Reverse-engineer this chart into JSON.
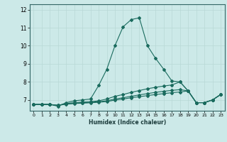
{
  "title": "",
  "xlabel": "Humidex (Indice chaleur)",
  "ylabel": "",
  "background_color": "#cce9e8",
  "grid_color": "#b8d8d6",
  "line_color": "#1a6b5e",
  "xlim": [
    -0.5,
    23.5
  ],
  "ylim": [
    6.4,
    12.3
  ],
  "yticks": [
    7,
    8,
    9,
    10,
    11,
    12
  ],
  "xticks": [
    0,
    1,
    2,
    3,
    4,
    5,
    6,
    7,
    8,
    9,
    10,
    11,
    12,
    13,
    14,
    15,
    16,
    17,
    18,
    19,
    20,
    21,
    22,
    23
  ],
  "series": [
    [
      6.75,
      6.75,
      6.75,
      6.65,
      6.85,
      6.95,
      7.0,
      7.05,
      7.8,
      8.7,
      10.0,
      11.05,
      11.45,
      11.55,
      10.0,
      9.3,
      8.7,
      8.05,
      8.0,
      7.5,
      6.85,
      6.85,
      7.0,
      7.3
    ],
    [
      6.75,
      6.75,
      6.75,
      6.7,
      6.8,
      6.85,
      6.88,
      6.9,
      6.95,
      7.05,
      7.2,
      7.3,
      7.42,
      7.52,
      7.62,
      7.7,
      7.77,
      7.83,
      8.0,
      7.5,
      6.85,
      6.85,
      7.0,
      7.3
    ],
    [
      6.75,
      6.75,
      6.75,
      6.7,
      6.78,
      6.82,
      6.85,
      6.87,
      6.9,
      6.95,
      7.05,
      7.12,
      7.2,
      7.28,
      7.35,
      7.42,
      7.48,
      7.53,
      7.57,
      7.5,
      6.85,
      6.85,
      7.0,
      7.3
    ],
    [
      6.75,
      6.75,
      6.75,
      6.7,
      6.76,
      6.8,
      6.82,
      6.84,
      6.87,
      6.91,
      6.99,
      7.05,
      7.12,
      7.18,
      7.24,
      7.3,
      7.35,
      7.4,
      7.44,
      7.5,
      6.85,
      6.85,
      7.0,
      7.3
    ]
  ]
}
